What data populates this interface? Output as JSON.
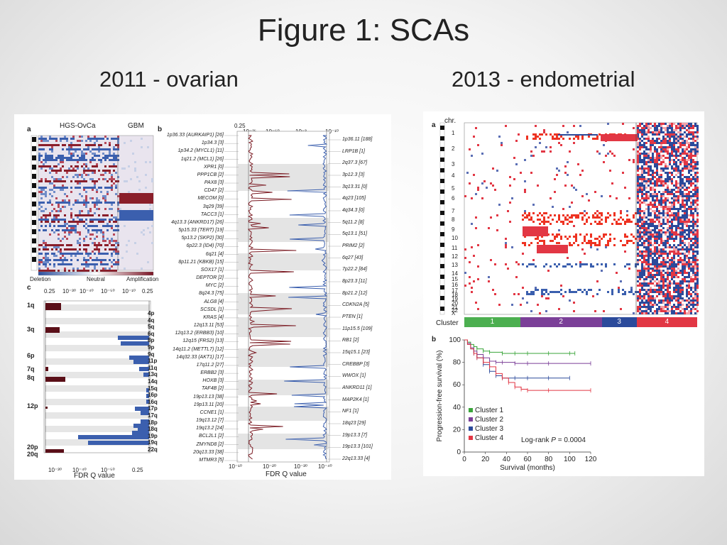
{
  "slide": {
    "title": "Figure 1: SCAs",
    "left_heading": "2011 - ovarian",
    "right_heading": "2013 - endometrial"
  },
  "left_figure": {
    "panel_a_label": "a",
    "panel_b_label": "b",
    "panel_c_label": "c",
    "heatmap_groups": [
      "HGS-OvCa",
      "GBM"
    ],
    "legend_labels": [
      "Deletion",
      "Neutral",
      "Amplification"
    ],
    "panel_c_tick_labels": [
      "0.25",
      "10⁻³⁰",
      "10⁻⁴⁰",
      "10⁻⁵⁰",
      "10⁻¹⁰",
      "0.25"
    ],
    "panel_c_xlabel": "FDR Q value",
    "panel_c_left_arms": [
      "1q",
      "3q",
      "6p",
      "7q",
      "8q",
      "12p",
      "20p",
      "20q"
    ],
    "panel_c_right_arms": [
      "4p",
      "4q",
      "5q",
      "6q",
      "8p",
      "9p",
      "9q",
      "11p",
      "11q",
      "13q",
      "14q",
      "15q",
      "16p",
      "16q",
      "17p",
      "17q",
      "18p",
      "18q",
      "19p",
      "19q",
      "22q"
    ],
    "panel_b_axis_labels": [
      "0.25",
      "10⁻²⁵",
      "10⁻⁵⁰",
      "10⁻³",
      "10⁻¹⁰"
    ],
    "panel_b_bottom_labels": [
      "10⁻¹⁰",
      "10⁻²⁰",
      "10⁻³⁰",
      "10⁻⁴⁰"
    ],
    "panel_b_xlabel": "FDR Q value",
    "amp_peaks": [
      "1p36.33 (AURKAIP1) [26]",
      "1p34.3 [3]",
      "1p34.2 (MYCL1) [11]",
      "1q21.2 (MCL1) [26]",
      "XPR1 [0]",
      "PPP1CB [2]",
      "PAX8 [3]",
      "CD47 [2]",
      "MECOM [0]",
      "3q29 [39]",
      "TACC3 [1]",
      "4q13.3 (ANKRD17) [26]",
      "5p15.33 (TERT) [19]",
      "5p13.2 (SKP2) [30]",
      "6p22.3 (ID4) [70]",
      "6q21 [4]",
      "8p11.21 (KBKB) [15]",
      "SOX17 [1]",
      "DEPTOR [2]",
      "MYC [2]",
      "8q24.3 [75]",
      "ALG8 [4]",
      "SCSDL [1]",
      "KRAS [4]",
      "12q13.11 [53]",
      "12q13.2 (ERBB3) [10]",
      "12q15 (FRS2) [13]",
      "14q11.2 (METTL7) [12]",
      "14q32.33 (AKT1) [17]",
      "17q11.2 [27]",
      "ERBB2 [3]",
      "HOXB [3]",
      "TAF4B [2]",
      "19p13.13 [38]",
      "19p13.11 [20]",
      "CCNE1 [1]",
      "19q13.12 [7]",
      "19q13.2 [24]",
      "BCL2L1 [2]",
      "ZMYND8 [2]",
      "20q13.33 [38]",
      "MTMR3 [5]"
    ],
    "del_peaks": [
      "1p36.11 [188]",
      "LRP1B [1]",
      "2q37.3 [67]",
      "3p12.3 [3]",
      "3q13.31 [0]",
      "4q23 [105]",
      "4q34.3 [0]",
      "5q11.2 [8]",
      "5q13.1 [51]",
      "PRIM2 [2]",
      "6q27 [43]",
      "7p22.2 [84]",
      "8p23.3 [11]",
      "8p21.2 [12]",
      "CDKN2A [5]",
      "PTEN [1]",
      "11p15.5 [109]",
      "RB1 [2]",
      "15q15.1 [23]",
      "CREBBP [3]",
      "WWOX [1]",
      "ANKRD11 [1]",
      "MAP2K4 [1]",
      "NF1 [1]",
      "18q23 [29]",
      "19p13.3 [7]",
      "19p13.3 [101]",
      "22q13.33 [4]"
    ]
  },
  "right_figure": {
    "panel_a_label": "a",
    "panel_b_label": "b",
    "chr_label": "chr.",
    "chromosomes": [
      "1",
      "2",
      "3",
      "4",
      "5",
      "6",
      "7",
      "8",
      "9",
      "10",
      "11",
      "12",
      "13",
      "14",
      "15",
      "16",
      "17",
      "18",
      "19",
      "20",
      "21",
      "22",
      "X"
    ],
    "cluster_label": "Cluster",
    "clusters": [
      {
        "name": "1",
        "color": "#4caf50",
        "fraction": 0.24
      },
      {
        "name": "2",
        "color": "#7b3f98",
        "fraction": 0.35
      },
      {
        "name": "3",
        "color": "#2b4a9b",
        "fraction": 0.15
      },
      {
        "name": "4",
        "color": "#e23744",
        "fraction": 0.26
      }
    ],
    "logrank_prefix": "Log-rank ",
    "logrank_p": "P",
    "logrank_value": " = 0.0004"
  },
  "chart_data": {
    "type": "line",
    "xlabel": "Survival (months)",
    "ylabel": "Progression-free survival (%)",
    "xlim": [
      0,
      120
    ],
    "ylim": [
      0,
      100
    ],
    "xticks": [
      "0",
      "20",
      "40",
      "60",
      "80",
      "100",
      "120"
    ],
    "yticks": [
      "0",
      "20",
      "40",
      "60",
      "80",
      "100"
    ],
    "legend_position": "bottom-left",
    "series": [
      {
        "name": "Cluster 1",
        "color": "#3aa53a",
        "x": [
          0,
          3,
          6,
          9,
          12,
          18,
          24,
          36,
          48,
          60,
          80,
          100,
          105
        ],
        "y": [
          100,
          98,
          96,
          94,
          92,
          90,
          89,
          88,
          88,
          88,
          88,
          88,
          88
        ]
      },
      {
        "name": "Cluster 2",
        "color": "#7b3f98",
        "x": [
          0,
          3,
          6,
          9,
          12,
          18,
          24,
          30,
          36,
          48,
          60,
          80,
          120
        ],
        "y": [
          100,
          97,
          93,
          90,
          87,
          84,
          81,
          80,
          80,
          79,
          79,
          79,
          79
        ]
      },
      {
        "name": "Cluster 3",
        "color": "#2b4a9b",
        "x": [
          0,
          3,
          6,
          9,
          12,
          18,
          24,
          30,
          36,
          48,
          60,
          80,
          100
        ],
        "y": [
          100,
          96,
          92,
          88,
          84,
          78,
          72,
          68,
          66,
          66,
          66,
          66,
          66
        ]
      },
      {
        "name": "Cluster 4",
        "color": "#e23744",
        "x": [
          0,
          3,
          6,
          9,
          12,
          18,
          24,
          30,
          36,
          42,
          48,
          54,
          60,
          80,
          120
        ],
        "y": [
          100,
          96,
          92,
          88,
          84,
          80,
          76,
          70,
          66,
          62,
          58,
          56,
          55,
          55,
          55
        ]
      }
    ]
  }
}
